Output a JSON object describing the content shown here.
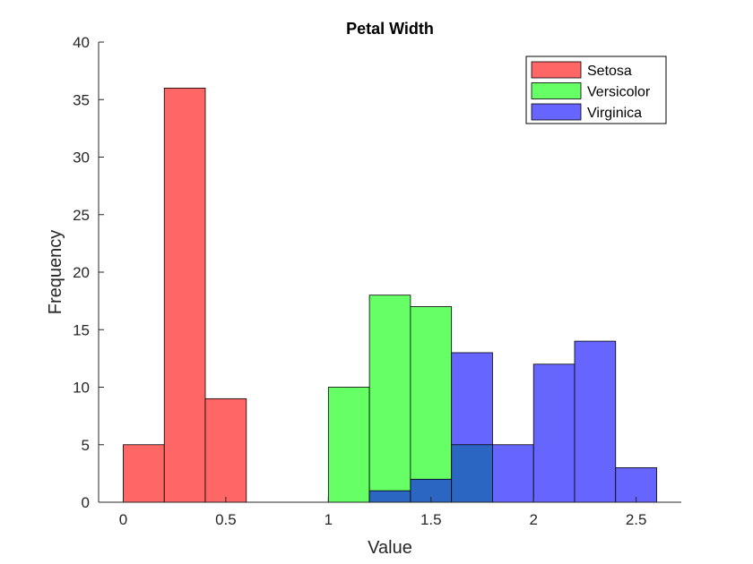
{
  "chart_data": {
    "type": "bar",
    "title": "Petal Width",
    "xlabel": "Value",
    "ylabel": "Frequency",
    "xlim": [
      -0.12,
      2.72
    ],
    "ylim": [
      0,
      40
    ],
    "xticks": [
      0,
      0.5,
      1,
      1.5,
      2,
      2.5
    ],
    "xtick_labels": [
      "0",
      "0.5",
      "1",
      "1.5",
      "2",
      "2.5"
    ],
    "yticks": [
      0,
      5,
      10,
      15,
      20,
      25,
      30,
      35,
      40
    ],
    "ytick_labels": [
      "0",
      "5",
      "10",
      "15",
      "20",
      "25",
      "30",
      "35",
      "40"
    ],
    "bin_width": 0.2,
    "legend_position": "top-right",
    "series": [
      {
        "name": "Setosa",
        "color": "#ff6666",
        "bins": [
          [
            0.0,
            5
          ],
          [
            0.2,
            36
          ],
          [
            0.4,
            9
          ]
        ]
      },
      {
        "name": "Versicolor",
        "color": "#66ff66",
        "bins": [
          [
            1.0,
            10
          ],
          [
            1.2,
            18
          ],
          [
            1.4,
            17
          ],
          [
            1.6,
            5
          ]
        ]
      },
      {
        "name": "Virginica",
        "color": "#6666ff",
        "bins": [
          [
            1.2,
            1
          ],
          [
            1.4,
            2
          ],
          [
            1.6,
            13
          ],
          [
            1.8,
            5
          ],
          [
            2.0,
            12
          ],
          [
            2.2,
            14
          ],
          [
            2.4,
            3
          ]
        ]
      }
    ],
    "overlap_color": "#2a66c2"
  }
}
